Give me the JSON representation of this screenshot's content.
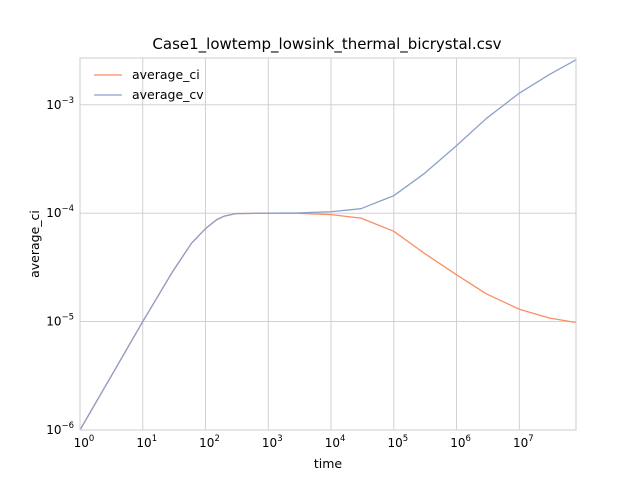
{
  "chart_data": {
    "type": "line",
    "title": "Case1_lowtemp_lowsink_thermal_bicrystal.csv",
    "xlabel": "time",
    "ylabel": "average_ci",
    "x_scale": "log",
    "y_scale": "log",
    "xlim": [
      1,
      80000000
    ],
    "ylim": [
      1e-06,
      0.0027
    ],
    "x_ticks": [
      {
        "base": "10",
        "exp": "0",
        "value": 1
      },
      {
        "base": "10",
        "exp": "1",
        "value": 10
      },
      {
        "base": "10",
        "exp": "2",
        "value": 100
      },
      {
        "base": "10",
        "exp": "3",
        "value": 1000
      },
      {
        "base": "10",
        "exp": "4",
        "value": 10000
      },
      {
        "base": "10",
        "exp": "5",
        "value": 100000
      },
      {
        "base": "10",
        "exp": "6",
        "value": 1000000
      },
      {
        "base": "10",
        "exp": "7",
        "value": 10000000
      }
    ],
    "y_ticks": [
      {
        "base": "10",
        "exp": "−6",
        "value": 1e-06
      },
      {
        "base": "10",
        "exp": "−5",
        "value": 1e-05
      },
      {
        "base": "10",
        "exp": "−4",
        "value": 0.0001
      },
      {
        "base": "10",
        "exp": "−3",
        "value": 0.001
      }
    ],
    "grid": true,
    "legend_position": "top-left",
    "series": [
      {
        "name": "average_ci",
        "color": "#fc8d62",
        "points": [
          [
            1,
            1e-06
          ],
          [
            3,
            3e-06
          ],
          [
            10,
            1e-05
          ],
          [
            30,
            2.9e-05
          ],
          [
            60,
            5.3e-05
          ],
          [
            100,
            7.2e-05
          ],
          [
            150,
            8.7e-05
          ],
          [
            200,
            9.4e-05
          ],
          [
            300,
            9.9e-05
          ],
          [
            1000,
            0.0001
          ],
          [
            3000,
            9.95e-05
          ],
          [
            10000,
            9.7e-05
          ],
          [
            30000,
            9e-05
          ],
          [
            100000,
            6.8e-05
          ],
          [
            300000,
            4.3e-05
          ],
          [
            1000000,
            2.7e-05
          ],
          [
            3000000,
            1.8e-05
          ],
          [
            10000000,
            1.3e-05
          ],
          [
            30000000,
            1.08e-05
          ],
          [
            80000000,
            9.8e-06
          ]
        ]
      },
      {
        "name": "average_cv",
        "color": "#8da0cb",
        "points": [
          [
            1,
            1e-06
          ],
          [
            3,
            3e-06
          ],
          [
            10,
            1e-05
          ],
          [
            30,
            2.9e-05
          ],
          [
            60,
            5.3e-05
          ],
          [
            100,
            7.2e-05
          ],
          [
            150,
            8.7e-05
          ],
          [
            200,
            9.4e-05
          ],
          [
            300,
            9.9e-05
          ],
          [
            1000,
            0.0001
          ],
          [
            3000,
            0.0001005
          ],
          [
            10000,
            0.000103
          ],
          [
            30000,
            0.00011
          ],
          [
            100000,
            0.000145
          ],
          [
            300000,
            0.00023
          ],
          [
            1000000,
            0.00042
          ],
          [
            3000000,
            0.00075
          ],
          [
            10000000,
            0.00128
          ],
          [
            30000000,
            0.0019
          ],
          [
            80000000,
            0.0026
          ]
        ]
      }
    ]
  }
}
